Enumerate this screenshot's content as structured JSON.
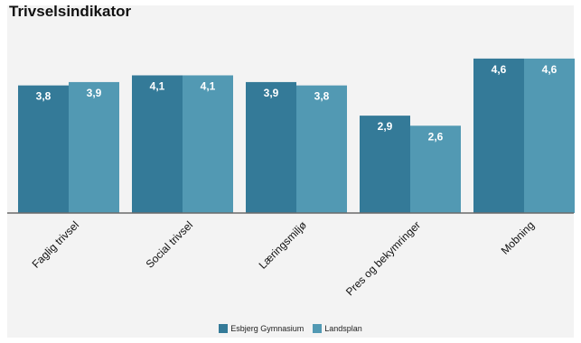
{
  "chart_data": {
    "type": "bar",
    "title": "Trivselsindikator",
    "categories": [
      "Faglig trivsel",
      "Social trivsel",
      "Læringsmiljø",
      "Pres og bekymringer",
      "Mobning"
    ],
    "series": [
      {
        "name": "Esbjerg Gymnasium",
        "color": "#347a98",
        "values": [
          3.8,
          4.1,
          3.9,
          2.9,
          4.6
        ],
        "labels": [
          "3,8",
          "4,1",
          "3,9",
          "2,9",
          "4,6"
        ]
      },
      {
        "name": "Landsplan",
        "color": "#5299b3",
        "values": [
          3.9,
          4.1,
          3.8,
          2.6,
          4.6
        ],
        "labels": [
          "3,9",
          "4,1",
          "3,8",
          "2,6",
          "4,6"
        ]
      }
    ],
    "ylim": [
      0,
      5
    ],
    "grid": false,
    "legend_position": "bottom-center",
    "xlabel": "",
    "ylabel": ""
  }
}
